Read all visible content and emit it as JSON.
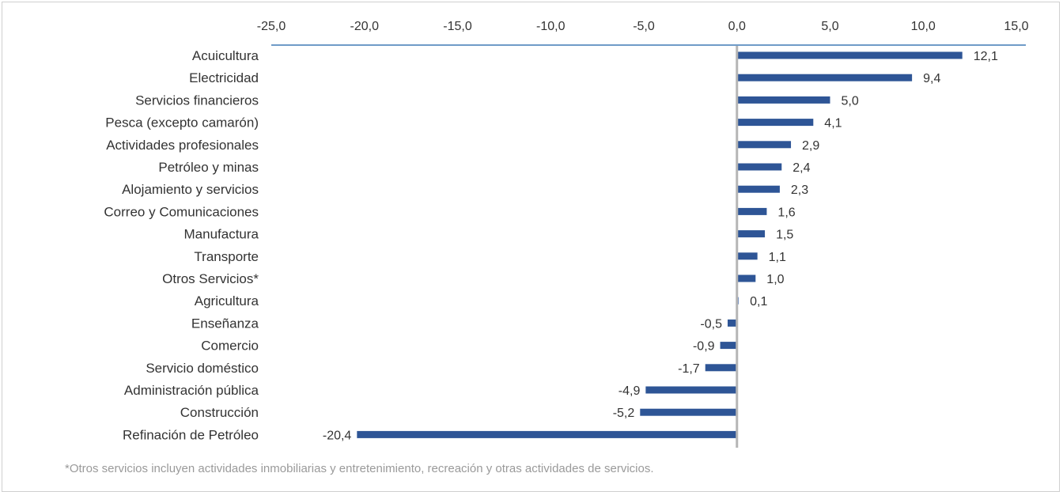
{
  "chart_data": {
    "type": "bar",
    "orientation": "horizontal",
    "categories": [
      "Acuicultura",
      "Electricidad",
      "Servicios financieros",
      "Pesca (excepto camarón)",
      "Actividades profesionales",
      "Petróleo y minas",
      "Alojamiento y servicios",
      "Correo y Comunicaciones",
      "Manufactura",
      "Transporte",
      "Otros Servicios*",
      "Agricultura",
      "Enseñanza",
      "Comercio",
      "Servicio doméstico",
      "Administración pública",
      "Construcción",
      "Refinación de Petróleo"
    ],
    "values": [
      12.1,
      9.4,
      5.0,
      4.1,
      2.9,
      2.4,
      2.3,
      1.6,
      1.5,
      1.1,
      1.0,
      0.1,
      -0.5,
      -0.9,
      -1.7,
      -4.9,
      -5.2,
      -20.4
    ],
    "value_labels": [
      "12,1",
      "9,4",
      "5,0",
      "4,1",
      "2,9",
      "2,4",
      "2,3",
      "1,6",
      "1,5",
      "1,1",
      "1,0",
      "0,1",
      "-0,5",
      "-0,9",
      "-1,7",
      "-4,9",
      "-5,2",
      "-20,4"
    ],
    "xlim": [
      -25,
      15
    ],
    "x_ticks": [
      -25,
      -20,
      -15,
      -10,
      -5,
      0,
      5,
      10,
      15
    ],
    "x_tick_labels": [
      "-25,0",
      "-20,0",
      "-15,0",
      "-10,0",
      "-5,0",
      "0,0",
      "5,0",
      "10,0",
      "15,0"
    ],
    "x_axis_position": "top",
    "grid": false,
    "title": "",
    "xlabel": "",
    "ylabel": "",
    "colors": {
      "bar": "#2e5596",
      "bar_highlight": "#6f8fc4",
      "axis": "#6f9bc8",
      "zero_line": "#b5b5b5"
    }
  },
  "footnote": "*Otros servicios incluyen actividades inmobiliarias y entretenimiento, recreación y otras actividades de servicios."
}
